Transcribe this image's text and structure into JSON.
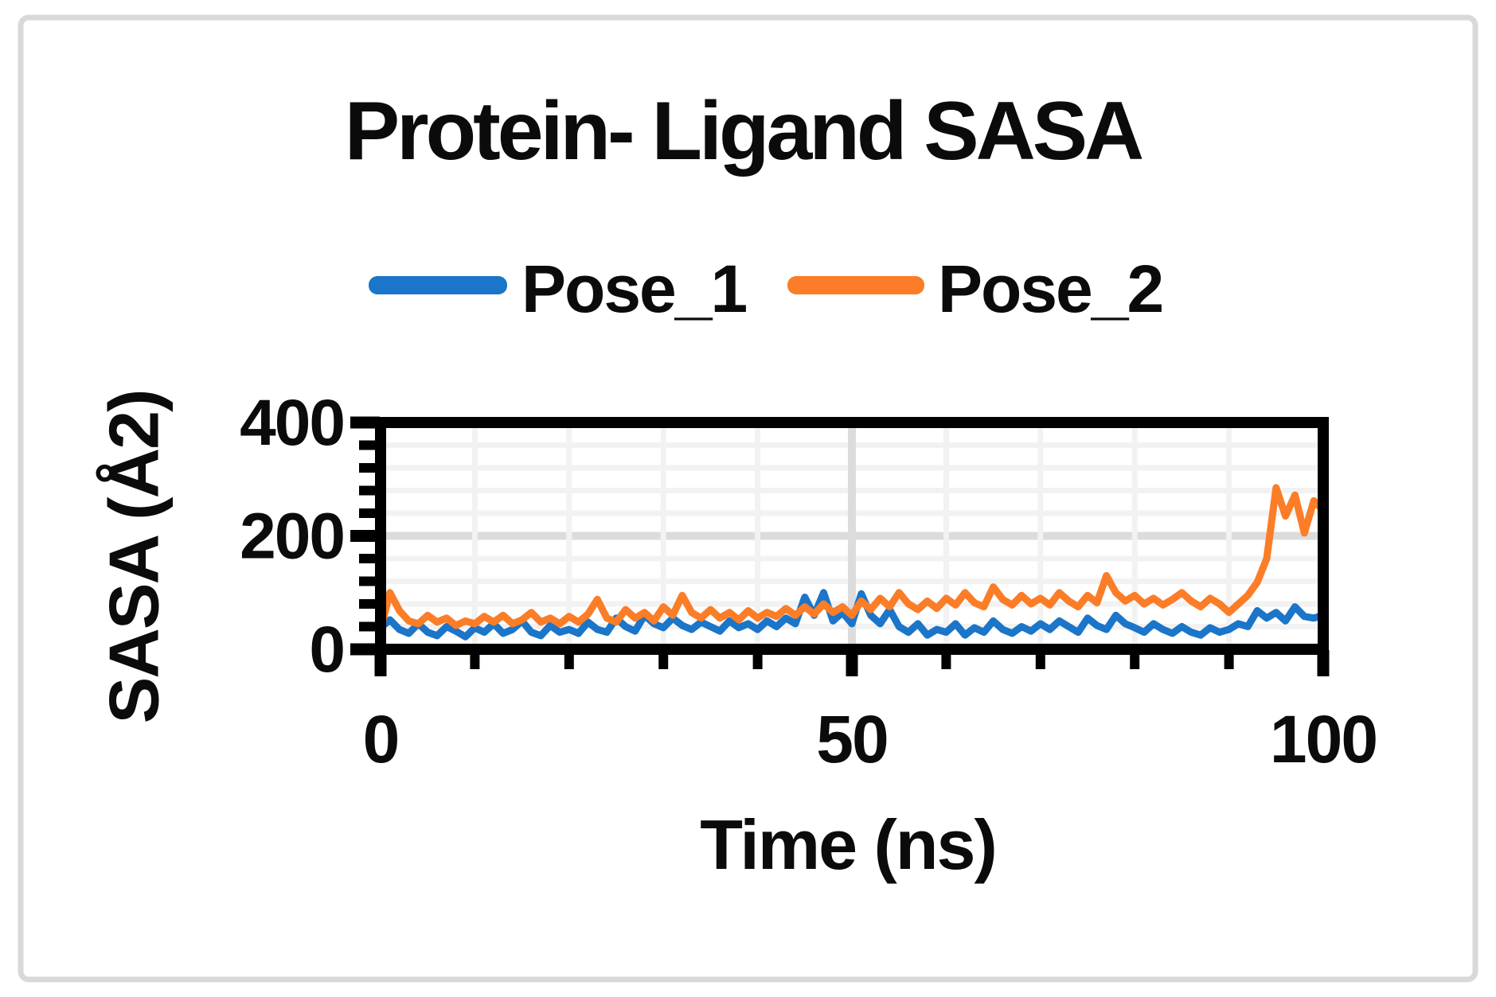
{
  "title": "Protein- Ligand SASA",
  "legend": [
    {
      "label": "Pose_1",
      "color": "#1b75c8"
    },
    {
      "label": "Pose_2",
      "color": "#fb7d27"
    }
  ],
  "frame": {
    "border_color": "#d9d9d9",
    "background": "#ffffff"
  },
  "axis_color": "#000000",
  "grid_minor_color": "#f2f2f2",
  "grid_major_color": "#dcdcdc",
  "chart_data": {
    "type": "line",
    "title": "Protein- Ligand SASA",
    "xlabel": "Time (ns)",
    "ylabel": "SASA (Å2)",
    "xlim": [
      0,
      100
    ],
    "ylim": [
      0,
      400
    ],
    "x_major_ticks": [
      0,
      50,
      100
    ],
    "x_minor_step": 10,
    "y_major_ticks": [
      0,
      200,
      400
    ],
    "y_minor_step": 40,
    "grid": "minor and major gridlines on",
    "legend_position": "top",
    "x_start": 0,
    "x_step": 1,
    "series": [
      {
        "name": "Pose_1",
        "color": "#1b75c8",
        "values": [
          38,
          52,
          35,
          28,
          45,
          30,
          24,
          40,
          32,
          22,
          38,
          30,
          45,
          28,
          35,
          50,
          30,
          24,
          42,
          30,
          35,
          28,
          48,
          35,
          30,
          55,
          40,
          32,
          60,
          45,
          38,
          55,
          42,
          35,
          48,
          40,
          32,
          50,
          38,
          45,
          35,
          50,
          40,
          55,
          45,
          92,
          60,
          100,
          50,
          65,
          45,
          98,
          60,
          45,
          70,
          40,
          30,
          45,
          25,
          35,
          30,
          45,
          25,
          38,
          30,
          50,
          35,
          28,
          40,
          32,
          45,
          35,
          50,
          40,
          30,
          55,
          42,
          35,
          60,
          45,
          38,
          30,
          45,
          35,
          28,
          40,
          30,
          25,
          38,
          30,
          35,
          45,
          40,
          68,
          55,
          65,
          50,
          75,
          58,
          55,
          60
        ]
      },
      {
        "name": "Pose_2",
        "color": "#fb7d27",
        "values": [
          35,
          100,
          68,
          50,
          45,
          60,
          48,
          55,
          42,
          50,
          45,
          58,
          48,
          60,
          45,
          52,
          65,
          48,
          55,
          45,
          58,
          48,
          62,
          88,
          55,
          48,
          70,
          55,
          65,
          50,
          75,
          60,
          95,
          65,
          55,
          70,
          55,
          65,
          52,
          68,
          55,
          65,
          58,
          72,
          60,
          75,
          62,
          80,
          65,
          75,
          60,
          85,
          70,
          90,
          75,
          100,
          80,
          70,
          85,
          72,
          90,
          78,
          100,
          82,
          75,
          110,
          88,
          78,
          95,
          80,
          90,
          78,
          100,
          85,
          75,
          95,
          82,
          130,
          100,
          85,
          95,
          80,
          90,
          78,
          88,
          100,
          85,
          75,
          90,
          80,
          65,
          80,
          95,
          118,
          160,
          285,
          235,
          272,
          205,
          262,
          245
        ]
      }
    ]
  }
}
